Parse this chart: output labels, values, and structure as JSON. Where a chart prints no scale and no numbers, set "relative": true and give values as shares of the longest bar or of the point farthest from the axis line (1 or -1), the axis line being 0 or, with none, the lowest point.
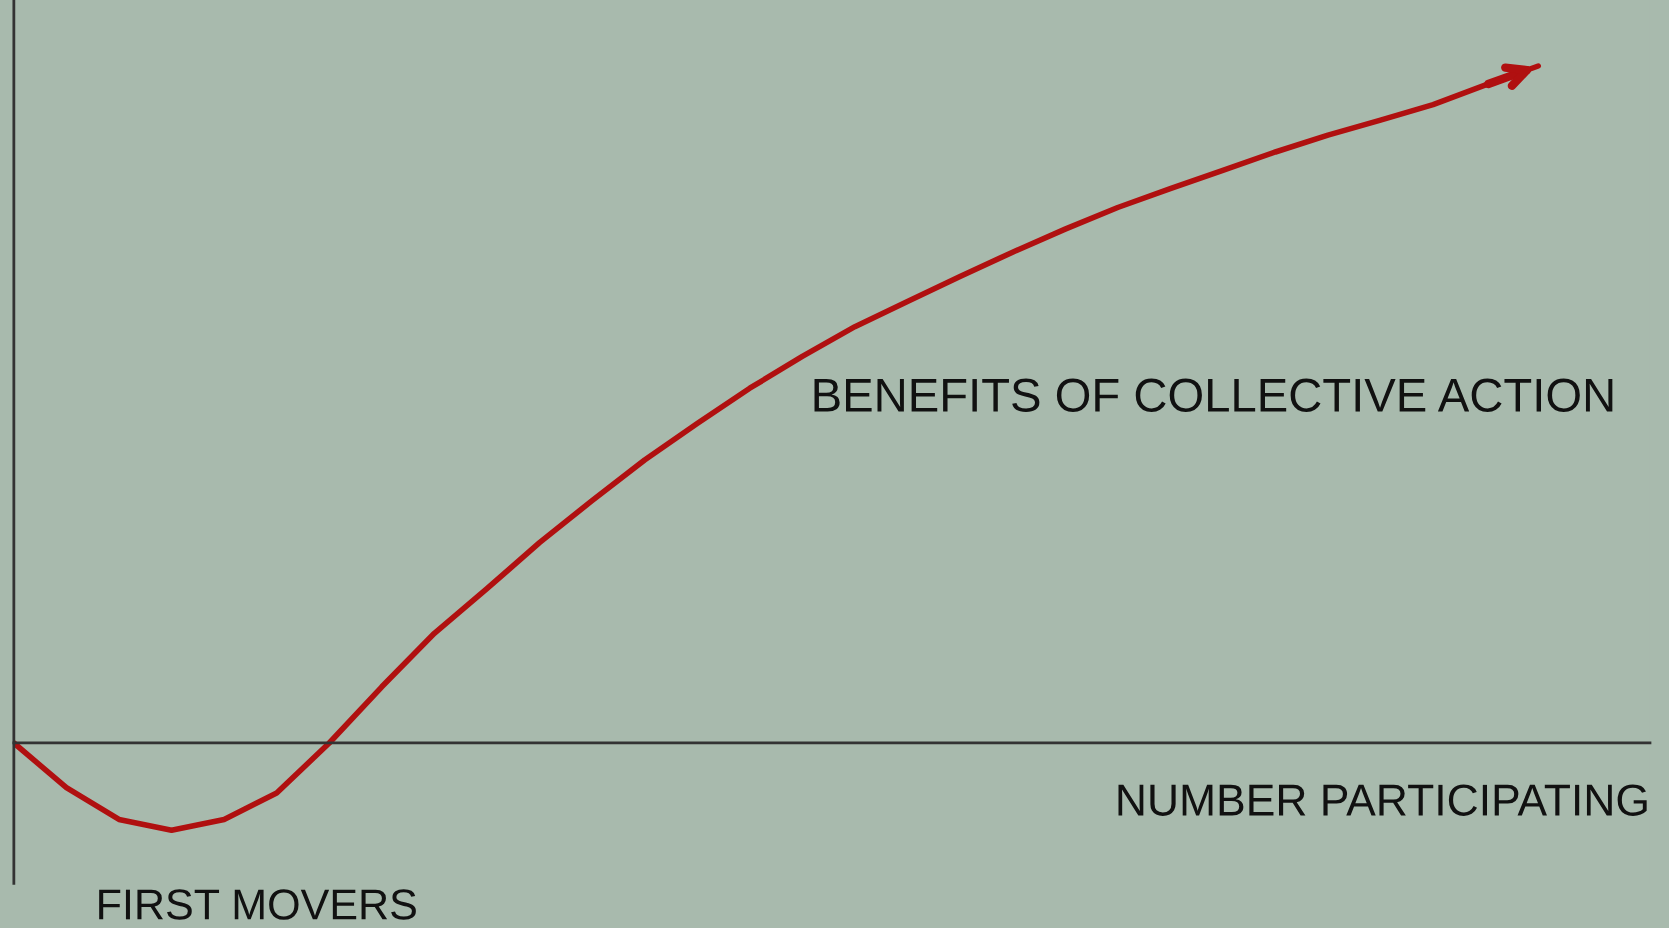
{
  "chart_data": {
    "type": "line",
    "relative": true,
    "xlabel": "NUMBER PARTICIPATING",
    "categories": [
      null,
      null,
      null,
      null,
      null,
      null,
      null,
      null,
      null,
      null,
      null,
      null,
      null,
      null,
      null,
      null,
      null,
      null,
      null,
      null,
      null,
      null,
      null,
      null,
      null,
      null,
      null,
      null,
      null,
      null
    ],
    "series": [
      {
        "name": "BENEFITS OF COLLECTIVE ACTION",
        "color": "#b01010",
        "values": [
          0,
          -0.066,
          -0.113,
          -0.129,
          -0.113,
          -0.074,
          0,
          0.083,
          0.162,
          0.228,
          0.296,
          0.358,
          0.418,
          0.472,
          0.524,
          0.571,
          0.615,
          0.652,
          0.689,
          0.725,
          0.759,
          0.791,
          0.819,
          0.846,
          0.873,
          0.898,
          0.92,
          0.943,
          0.972,
          1
        ]
      }
    ],
    "annotations": [
      "FIRST MOVERS"
    ],
    "legend": false,
    "marker": "none",
    "line_style": "solid"
  }
}
